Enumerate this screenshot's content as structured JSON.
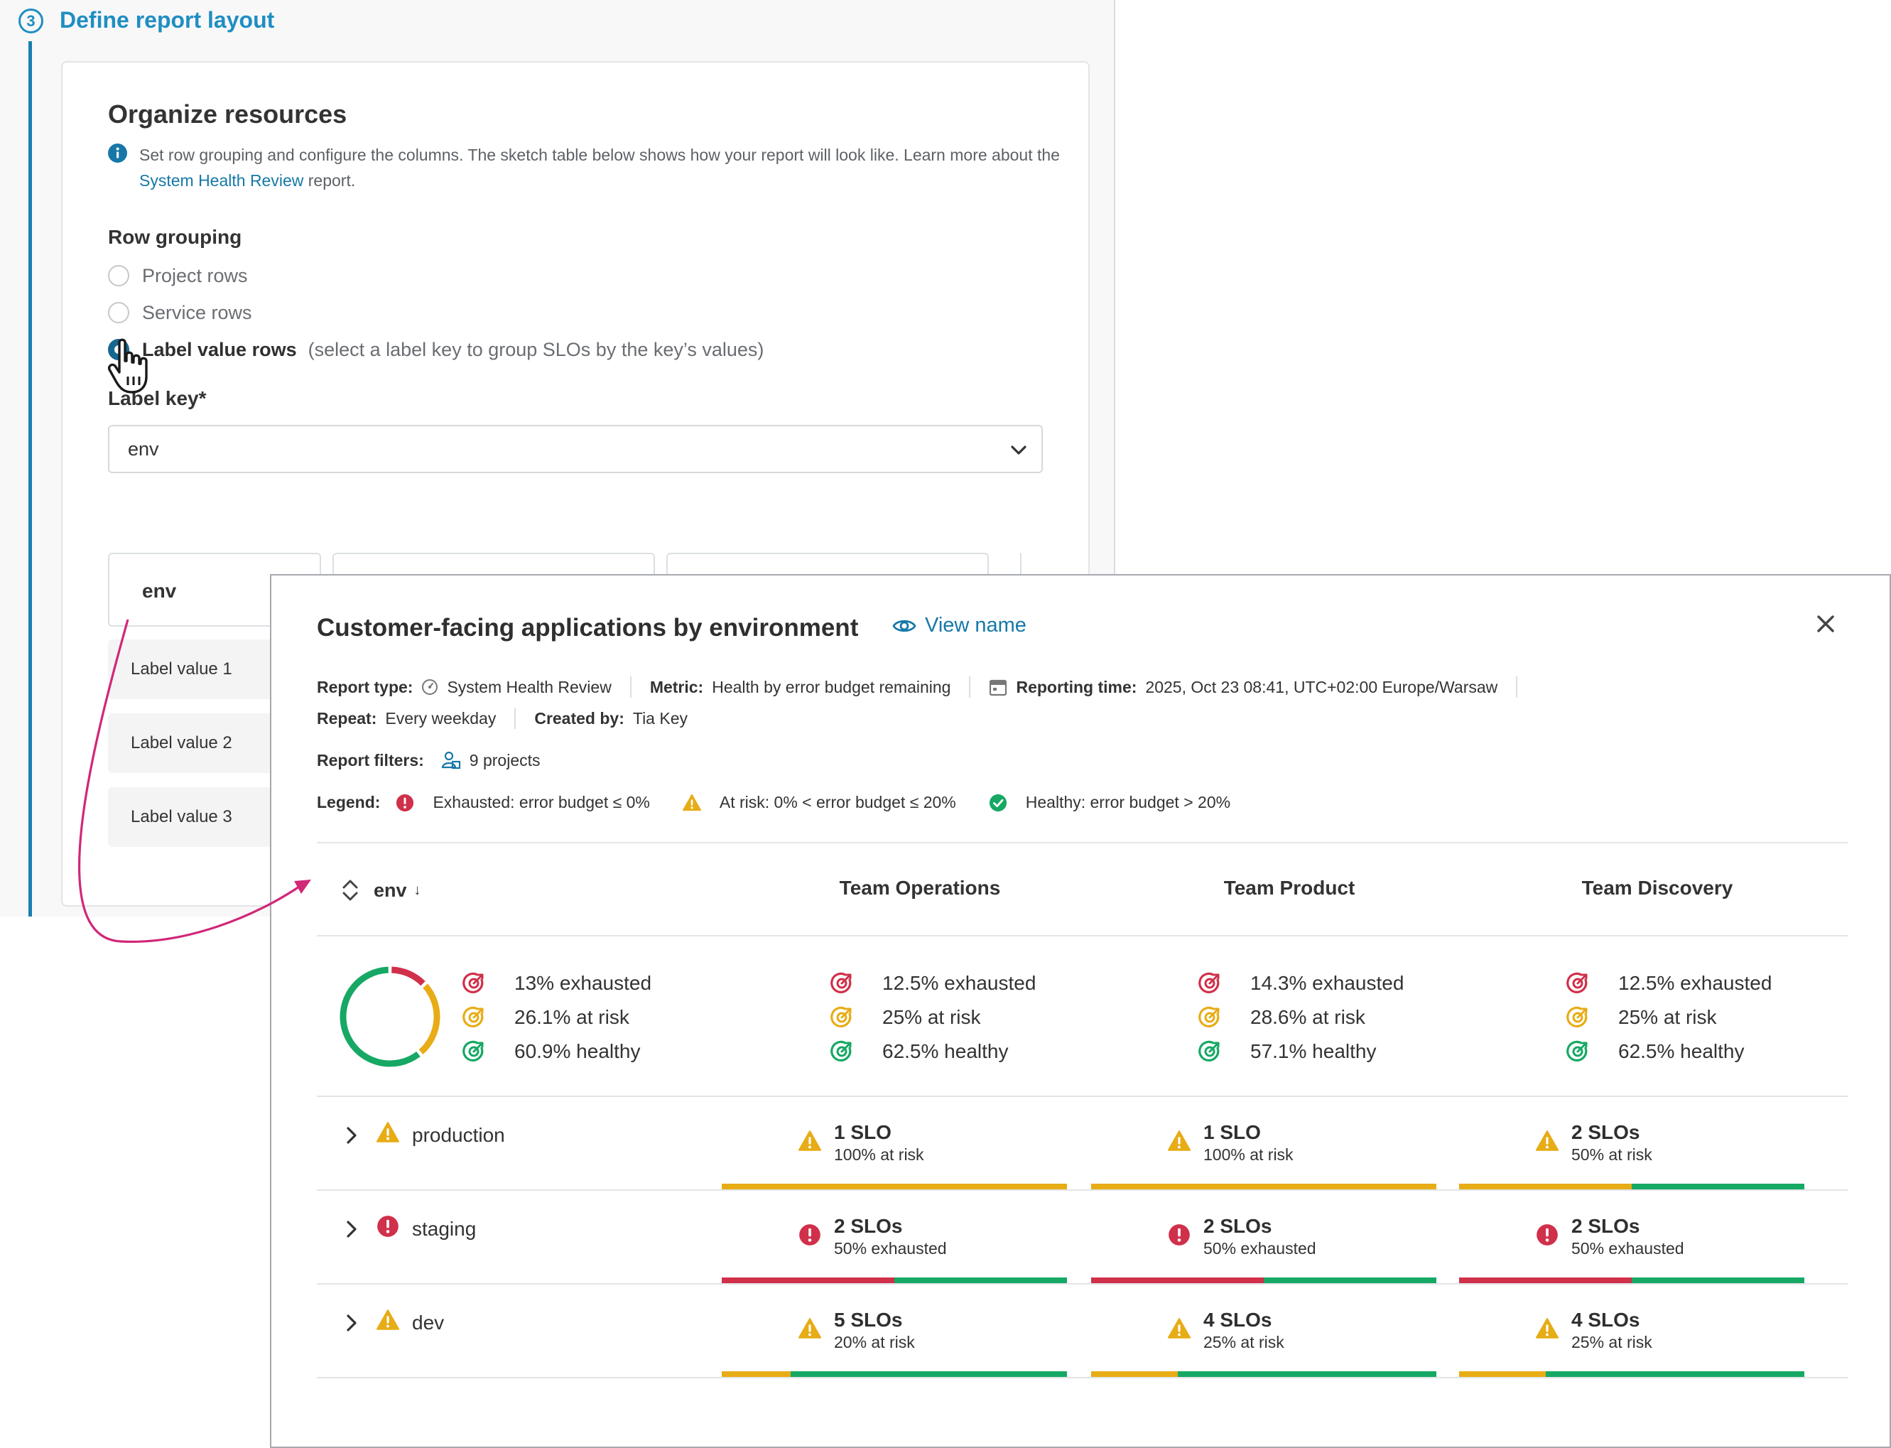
{
  "wizard": {
    "step_number": "3",
    "step_title": "Define report layout",
    "section_title": "Organize resources",
    "info_text_before": "Set row grouping and configure the columns. The sketch table below shows how your report will look like. Learn more about the ",
    "info_link": "System Health Review",
    "info_text_after": " report.",
    "row_grouping_label": "Row grouping",
    "radio_project": "Project rows",
    "radio_service": "Service rows",
    "radio_label_value": "Label value rows",
    "radio_label_value_hint": "(select a label key to group SLOs by the key’s values)",
    "selected_radio": "Label value rows",
    "label_key_label": "Label key*",
    "label_key_value": "env",
    "sketch": {
      "header": "env",
      "rows": [
        "Label value 1",
        "Label value 2",
        "Label value 3"
      ]
    }
  },
  "modal": {
    "title": "Customer-facing applications by environment",
    "view_name_label": "View name",
    "meta": {
      "report_type_key": "Report type:",
      "report_type_value": "System Health Review",
      "metric_key": "Metric:",
      "metric_value": "Health by error budget remaining",
      "reporting_time_key": "Reporting time:",
      "reporting_time_value": "2025, Oct 23 08:41, UTC+02:00 Europe/Warsaw",
      "repeat_key": "Repeat:",
      "repeat_value": "Every weekday",
      "created_by_key": "Created by:",
      "created_by_value": "Tia Key",
      "filters_key": "Report filters:",
      "filters_value": "9 projects"
    },
    "legend": {
      "key": "Legend:",
      "exhausted": "Exhausted: error budget ≤ 0%",
      "at_risk": "At risk: 0% < error budget ≤ 20%",
      "healthy": "Healthy: error budget > 20%"
    },
    "table": {
      "first_col_header": "env",
      "teams": [
        "Team Operations",
        "Team Product",
        "Team Discovery"
      ],
      "summary": {
        "overall": {
          "exhausted": "13% exhausted",
          "at_risk": "26.1% at risk",
          "healthy": "60.9% healthy",
          "pct": [
            13,
            26.1,
            60.9
          ]
        },
        "teams": [
          {
            "exhausted": "12.5% exhausted",
            "at_risk": "25% at risk",
            "healthy": "62.5% healthy"
          },
          {
            "exhausted": "14.3% exhausted",
            "at_risk": "28.6% at risk",
            "healthy": "57.1% healthy"
          },
          {
            "exhausted": "12.5% exhausted",
            "at_risk": "25% at risk",
            "healthy": "62.5% healthy"
          }
        ]
      },
      "groups": [
        {
          "name": "production",
          "status": "at_risk",
          "cells": [
            {
              "count": "1 SLO",
              "detail": "100% at risk",
              "status": "at_risk",
              "bar": {
                "exhausted": 0,
                "at_risk": 1,
                "healthy": 0
              }
            },
            {
              "count": "1 SLO",
              "detail": "100% at risk",
              "status": "at_risk",
              "bar": {
                "exhausted": 0,
                "at_risk": 1,
                "healthy": 0
              }
            },
            {
              "count": "2 SLOs",
              "detail": "50% at risk",
              "status": "at_risk",
              "bar": {
                "exhausted": 0,
                "at_risk": 0.5,
                "healthy": 0.5
              }
            }
          ]
        },
        {
          "name": "staging",
          "status": "exhausted",
          "cells": [
            {
              "count": "2 SLOs",
              "detail": "50% exhausted",
              "status": "exhausted",
              "bar": {
                "exhausted": 0.5,
                "at_risk": 0,
                "healthy": 0.5
              }
            },
            {
              "count": "2 SLOs",
              "detail": "50% exhausted",
              "status": "exhausted",
              "bar": {
                "exhausted": 0.5,
                "at_risk": 0,
                "healthy": 0.5
              }
            },
            {
              "count": "2 SLOs",
              "detail": "50% exhausted",
              "status": "exhausted",
              "bar": {
                "exhausted": 0.5,
                "at_risk": 0,
                "healthy": 0.5
              }
            }
          ]
        },
        {
          "name": "dev",
          "status": "at_risk",
          "cells": [
            {
              "count": "5 SLOs",
              "detail": "20% at risk",
              "status": "at_risk",
              "bar": {
                "exhausted": 0,
                "at_risk": 0.2,
                "healthy": 0.8
              }
            },
            {
              "count": "4 SLOs",
              "detail": "25% at risk",
              "status": "at_risk",
              "bar": {
                "exhausted": 0,
                "at_risk": 0.25,
                "healthy": 0.75
              }
            },
            {
              "count": "4 SLOs",
              "detail": "25% at risk",
              "status": "at_risk",
              "bar": {
                "exhausted": 0,
                "at_risk": 0.25,
                "healthy": 0.75
              }
            }
          ]
        }
      ]
    }
  },
  "colors": {
    "exhausted": "#d0304a",
    "at_risk": "#e7ac16",
    "healthy": "#16a864",
    "accent": "#1678a8",
    "arrow": "#d12778"
  },
  "icons": {
    "step": "step-number-icon",
    "info": "info-icon",
    "cursor": "hand-pointer-icon",
    "chevron": "chevron-down-icon",
    "eye": "eye-icon",
    "close": "close-icon",
    "report_type": "report-type-icon",
    "calendar": "calendar-icon",
    "projects": "projects-icon",
    "sort": "sort-icon",
    "expand": "chevron-right-icon"
  }
}
